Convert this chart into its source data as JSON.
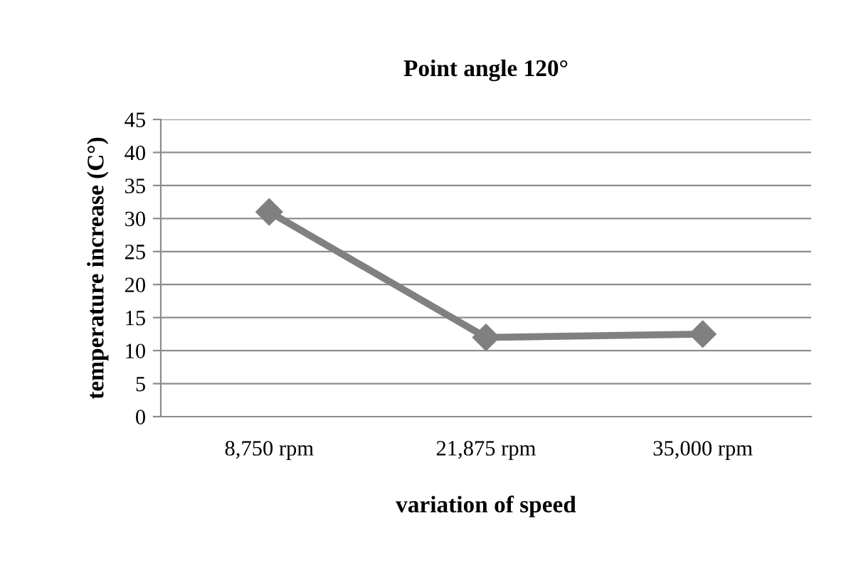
{
  "chart_data": {
    "type": "line",
    "title": "Point angle 120°",
    "xlabel": "variation of speed",
    "ylabel": "temperature increase (C°)",
    "categories": [
      "8,750 rpm",
      "21,875 rpm",
      "35,000 rpm"
    ],
    "series": [
      {
        "color": "#808080",
        "values": [
          31,
          12,
          12.5
        ]
      }
    ],
    "ylim": [
      0,
      45
    ],
    "yticks": [
      0,
      5,
      10,
      15,
      20,
      25,
      30,
      35,
      40,
      45
    ],
    "grid": "y",
    "marker": "diamond",
    "line_style": "solid",
    "legend": false
  }
}
